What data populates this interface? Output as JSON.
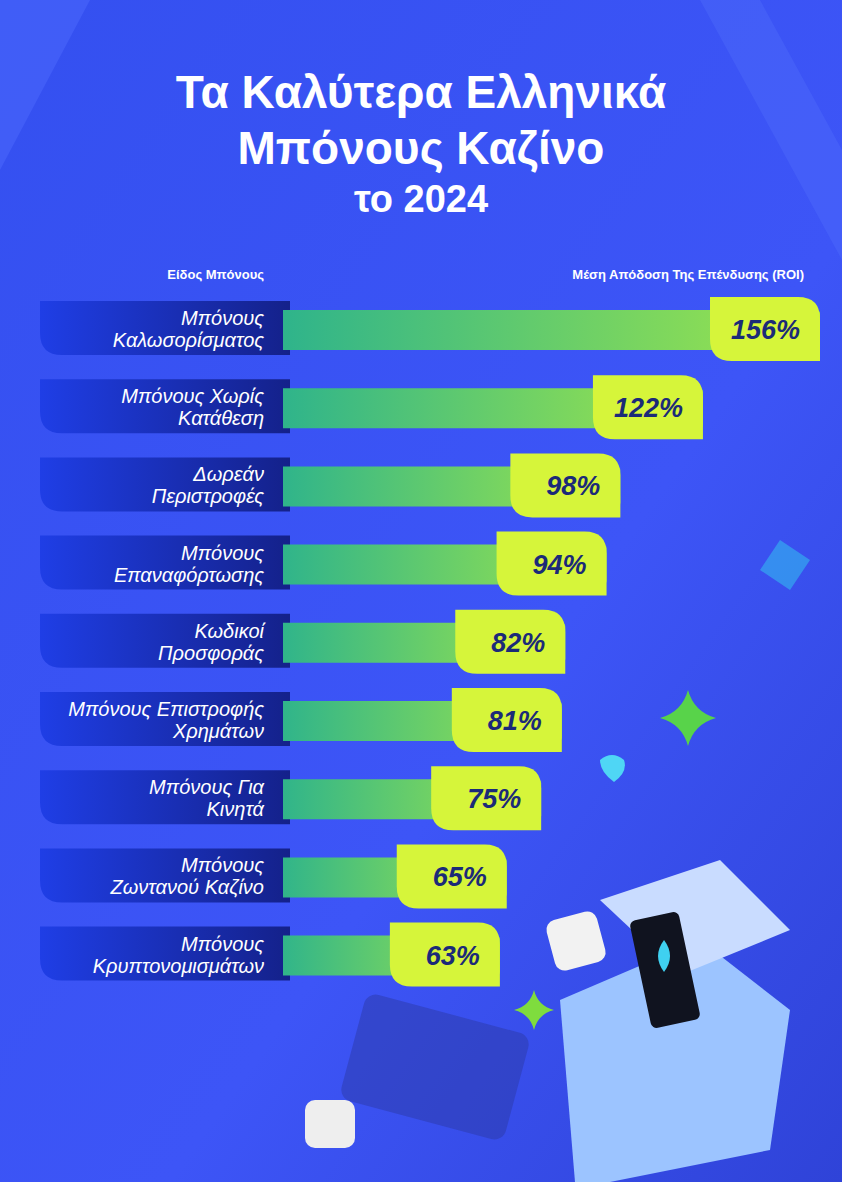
{
  "chart_data": {
    "type": "bar",
    "orientation": "horizontal",
    "title": "Τα Καλύτερα Ελληνικά Μπόνους Καζίνο",
    "subtitle": "το 2024",
    "y_label": "Είδος Μπόνους",
    "x_label": "Μέση Απόδοση Της Επένδυσης (ROI)",
    "categories": [
      "Μπόνους\nΚαλωσορίσματος",
      "Μπόνους Χωρίς\nΚατάθεση",
      "Δωρεάν\nΠεριστροφές",
      "Μπόνους\nΕπαναφόρτωσης",
      "Κωδικοί\nΠροσφοράς",
      "Μπόνους Επιστροφής\nΧρημάτων",
      "Μπόνους Για\nΚινητά",
      "Μπόνους\nΖωντανού Καζίνο",
      "Μπόνους\nΚρυπτονομισμάτων"
    ],
    "values": [
      156,
      122,
      98,
      94,
      82,
      81,
      75,
      65,
      63
    ],
    "value_labels": [
      "156%",
      "122%",
      "98%",
      "94%",
      "82%",
      "81%",
      "75%",
      "65%",
      "63%"
    ],
    "color": "#9fe64a",
    "xlim": [
      0,
      156
    ],
    "data_labels": true,
    "tick_labels": false,
    "grid": false
  }
}
